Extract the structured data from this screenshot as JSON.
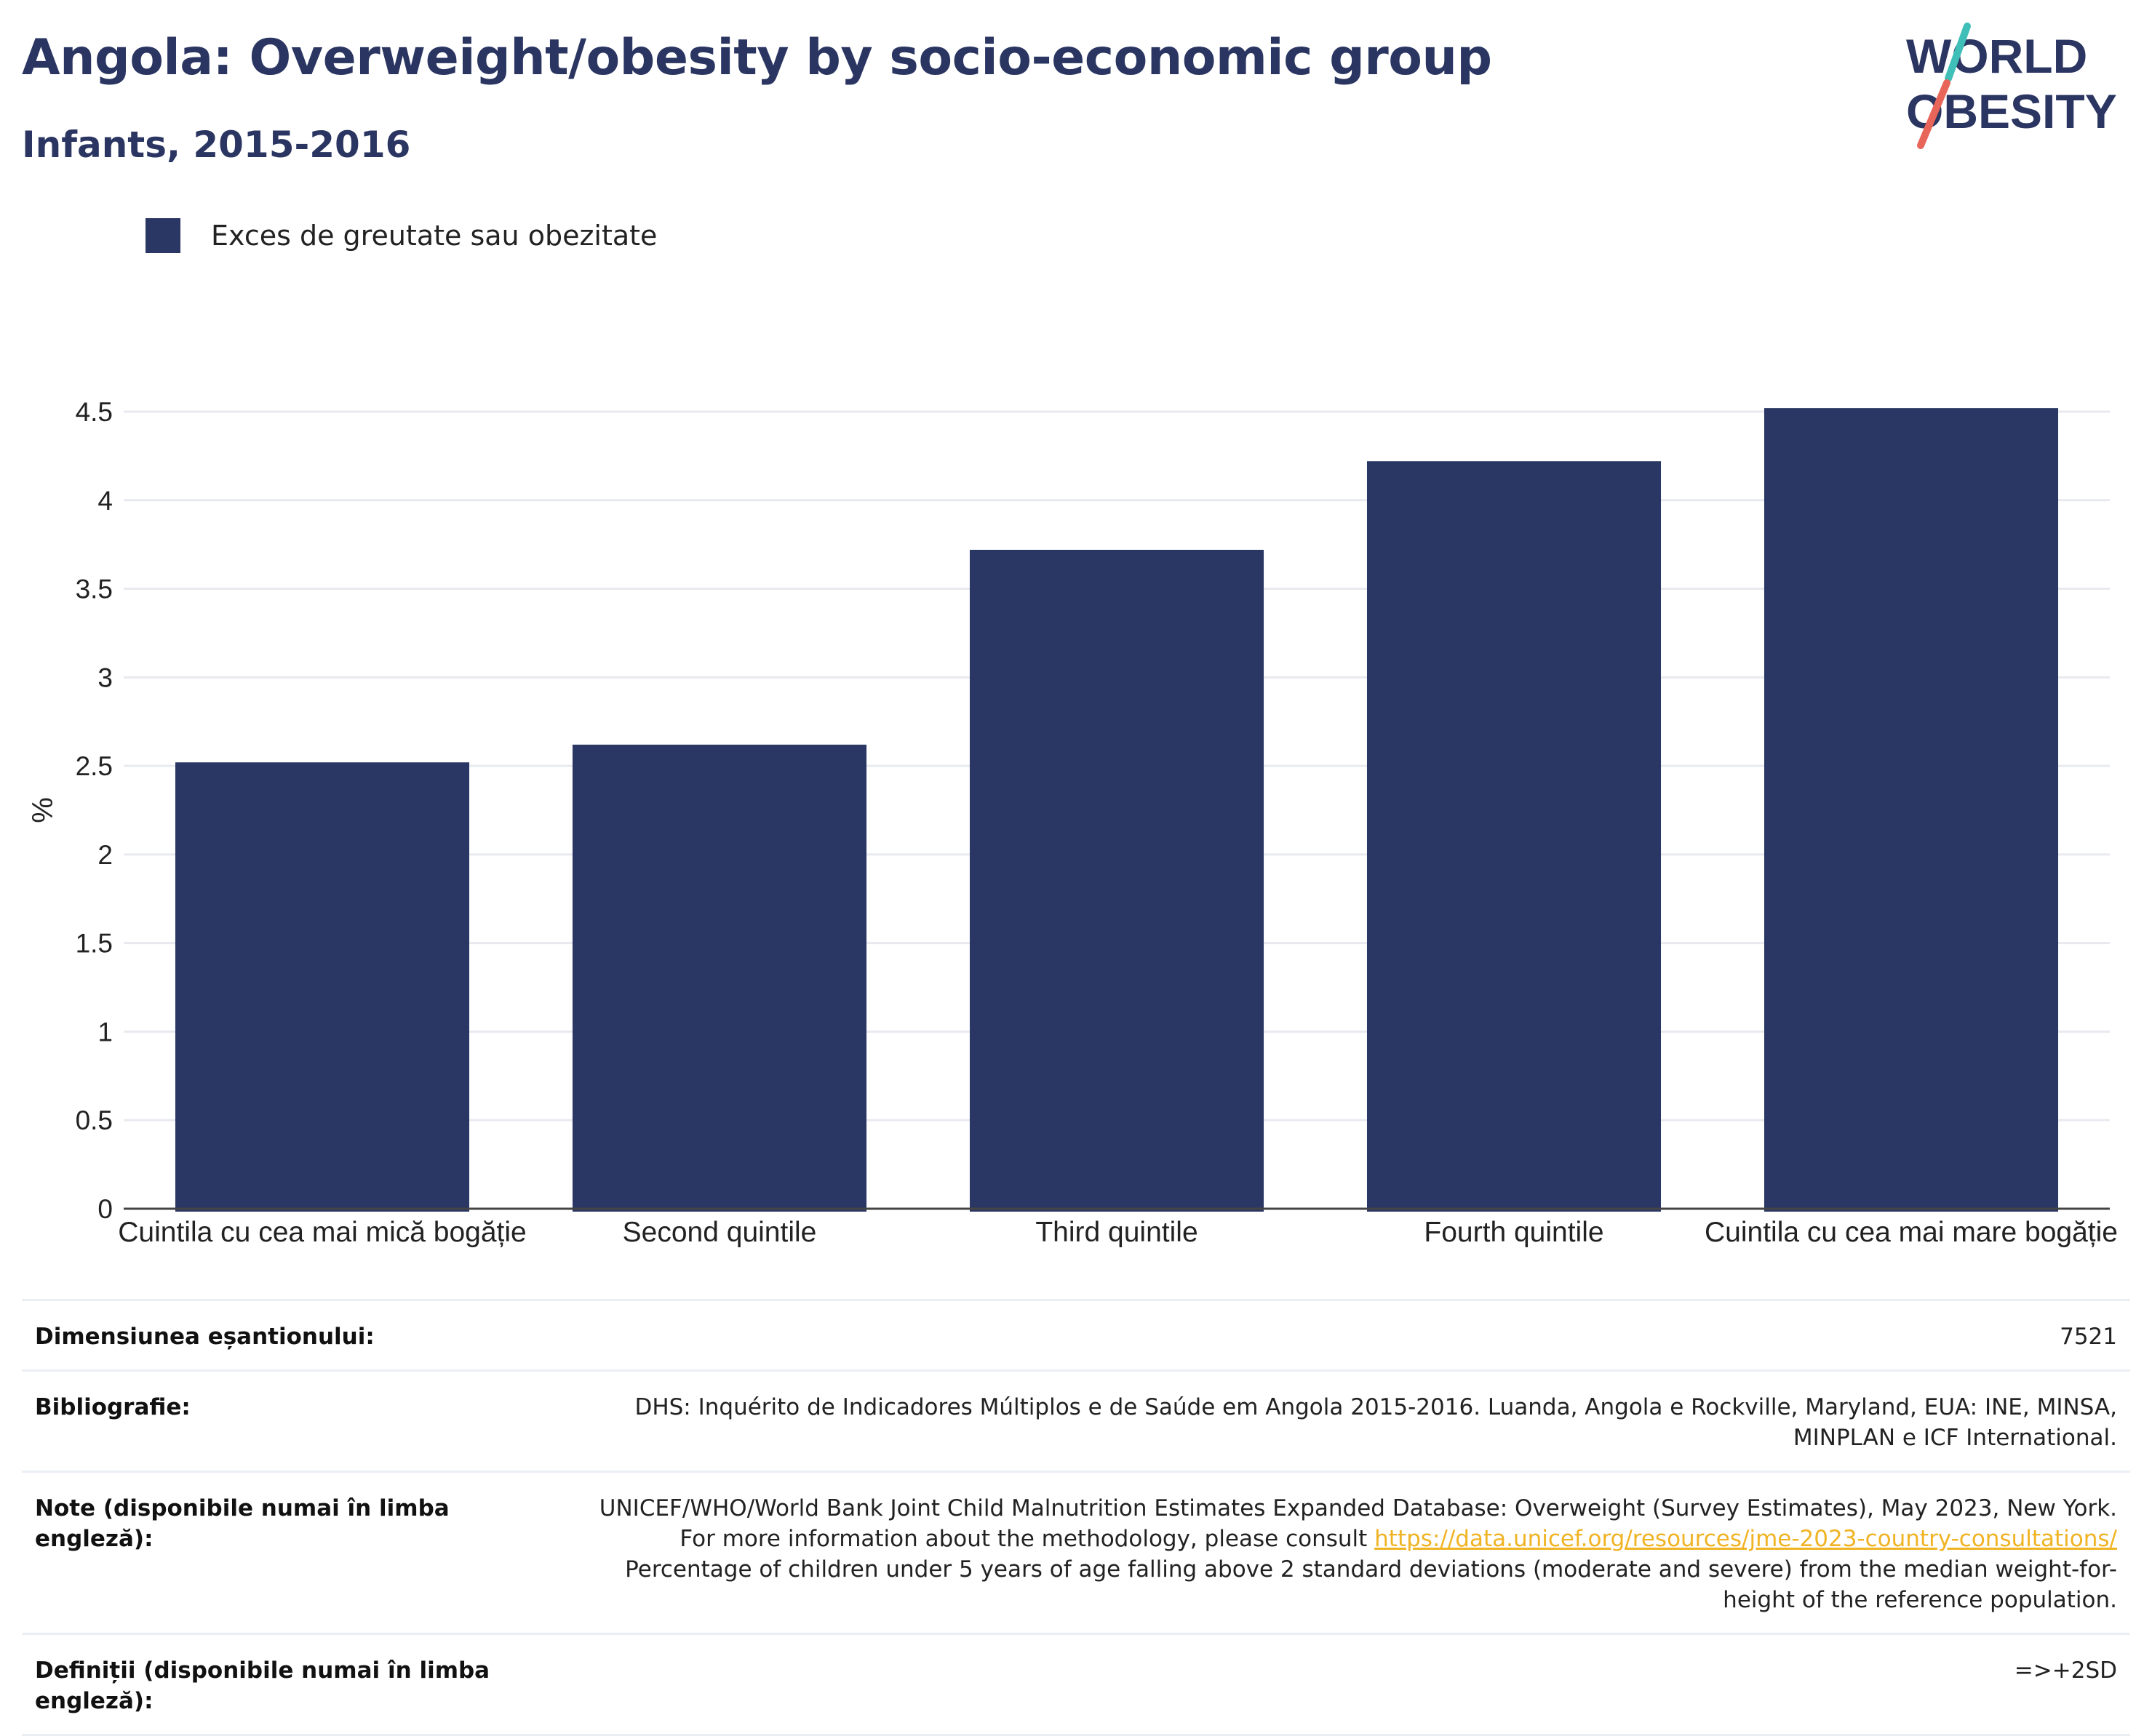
{
  "header": {
    "title": "Angola: Overweight/obesity by socio-economic group",
    "subtitle": "Infants, 2015-2016"
  },
  "logo": {
    "line1": "WORLD",
    "line2": "OBESITY",
    "colors": {
      "text": "#2a3561",
      "slash_top": "#3fbfb7",
      "slash_bottom": "#e8655a"
    }
  },
  "legend": {
    "label": "Exces de greutate sau obezitate",
    "color": "#2a3663"
  },
  "chart_data": {
    "type": "bar",
    "categories": [
      "Cuintila cu cea mai mică bogăție",
      "Second quintile",
      "Third quintile",
      "Fourth quintile",
      "Cuintila cu cea mai mare bogăție"
    ],
    "series": [
      {
        "name": "Exces de greutate sau obezitate",
        "values": [
          2.52,
          2.62,
          3.72,
          4.22,
          4.52
        ],
        "color": "#2a3663"
      }
    ],
    "ylabel": "%",
    "ylim": [
      0,
      4.5
    ],
    "yticks": [
      "0",
      "0.5",
      "1",
      "1.5",
      "2",
      "2.5",
      "3",
      "3.5",
      "4",
      "4.5"
    ],
    "grid": true,
    "legend_position": "top-left"
  },
  "footer": {
    "rows": [
      {
        "key": "Dimensiunea eșantionului:",
        "value": "7521"
      },
      {
        "key": "Bibliografie:",
        "value": "DHS: Inquérito de Indicadores Múltiplos e de Saúde em Angola 2015-2016. Luanda, Angola e Rockville, Maryland, EUA: INE, MINSA, MINPLAN e ICF International."
      },
      {
        "key": "Note (disponibile numai în limba engleză):",
        "value_before": "UNICEF/WHO/World Bank Joint Child Malnutrition Estimates Expanded Database: Overweight (Survey Estimates), May 2023, New York. For more information about the methodology, please consult ",
        "link": "https://data.unicef.org/resources/jme-2023-country-consultations/",
        "value_after": " Percentage of children under 5 years of age falling above 2 standard deviations (moderate and severe) from the median weight-for-height of the reference population."
      },
      {
        "key": "Definiții (disponibile numai în limba engleză):",
        "value": "=>+2SD"
      }
    ]
  }
}
